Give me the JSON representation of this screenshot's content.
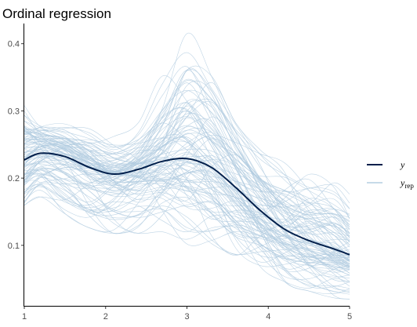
{
  "chart_data": {
    "type": "line",
    "title": "Ordinal regression",
    "xlabel": "",
    "ylabel": "",
    "xlim": [
      1,
      5
    ],
    "ylim": [
      0.01,
      0.43
    ],
    "x_ticks": [
      "1",
      "2",
      "3",
      "4",
      "5"
    ],
    "y_ticks": [
      "0.1",
      "0.2",
      "0.3",
      "0.4"
    ],
    "grid": false,
    "legend_position": "right",
    "legend": [
      {
        "key": "y",
        "label": "y",
        "subscript": "",
        "color": "#011f4b"
      },
      {
        "key": "yrep",
        "label": "y",
        "subscript": "rep",
        "color": "#b3cde0"
      }
    ],
    "series": [
      {
        "name": "y",
        "color": "#011f4b",
        "x": [
          1.0,
          1.2,
          1.5,
          1.8,
          2.1,
          2.4,
          2.7,
          3.0,
          3.3,
          3.6,
          3.9,
          4.2,
          4.5,
          4.8,
          5.0
        ],
        "y": [
          0.227,
          0.237,
          0.232,
          0.216,
          0.206,
          0.213,
          0.225,
          0.229,
          0.216,
          0.186,
          0.152,
          0.124,
          0.107,
          0.095,
          0.086
        ]
      }
    ],
    "replicates": {
      "name": "yrep",
      "color": "#b3cde0",
      "count": 100,
      "x": [
        1.0,
        1.2,
        1.5,
        1.8,
        2.1,
        2.4,
        2.7,
        3.0,
        3.3,
        3.6,
        3.9,
        4.2,
        4.5,
        4.8,
        5.0
      ],
      "yhigh": [
        0.322,
        0.292,
        0.282,
        0.276,
        0.262,
        0.282,
        0.352,
        0.415,
        0.352,
        0.282,
        0.242,
        0.232,
        0.222,
        0.212,
        0.186
      ],
      "ylow": [
        0.152,
        0.172,
        0.147,
        0.126,
        0.118,
        0.118,
        0.12,
        0.102,
        0.094,
        0.08,
        0.066,
        0.046,
        0.032,
        0.022,
        0.02
      ]
    }
  }
}
